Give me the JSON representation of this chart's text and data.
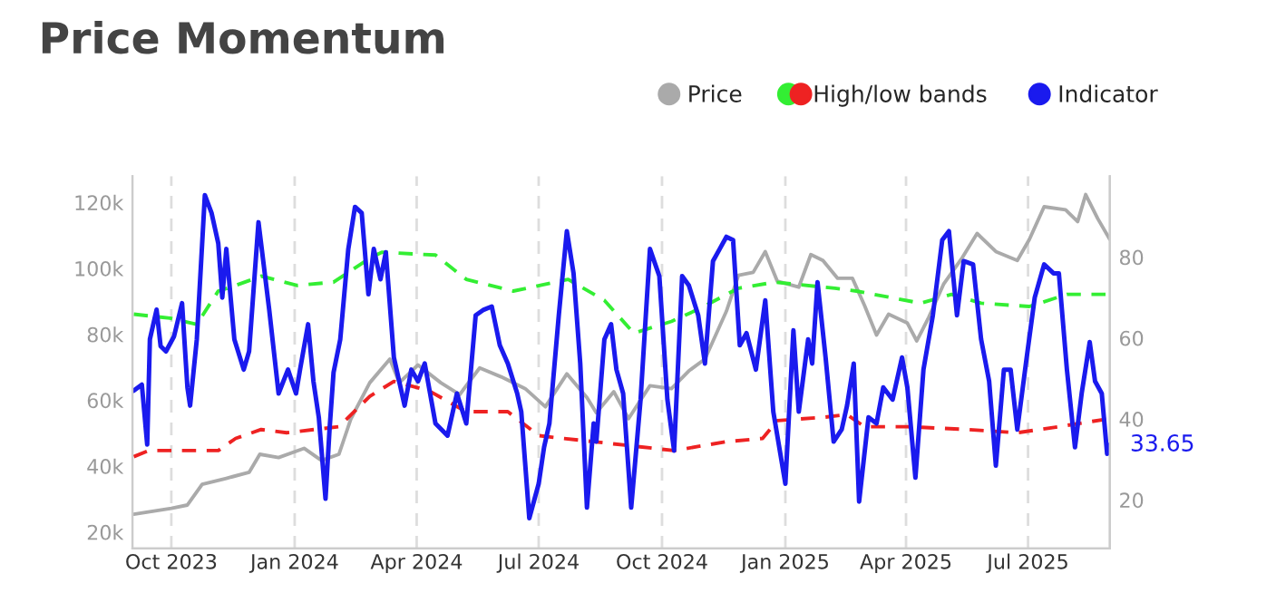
{
  "chart_data": {
    "type": "line",
    "title": "Price Momentum",
    "xlim": [
      "2023-09-02",
      "2025-08-31"
    ],
    "xticks": [
      {
        "value": "2023-10-01",
        "label": "Oct 2023"
      },
      {
        "value": "2024-01-01",
        "label": "Jan 2024"
      },
      {
        "value": "2024-04-01",
        "label": "Apr 2024"
      },
      {
        "value": "2024-07-01",
        "label": "Jul 2024"
      },
      {
        "value": "2024-10-01",
        "label": "Oct 2024"
      },
      {
        "value": "2025-01-01",
        "label": "Jan 2025"
      },
      {
        "value": "2025-04-01",
        "label": "Apr 2025"
      },
      {
        "value": "2025-07-01",
        "label": "Jul 2025"
      }
    ],
    "ylim": [
      15000,
      128000
    ],
    "yticks": [
      {
        "value": 20000,
        "label": "20k"
      },
      {
        "value": 40000,
        "label": "40k"
      },
      {
        "value": 60000,
        "label": "60k"
      },
      {
        "value": 80000,
        "label": "80k"
      },
      {
        "value": 100000,
        "label": "100k"
      },
      {
        "value": 120000,
        "label": "120k"
      }
    ],
    "y2lim": [
      8,
      100
    ],
    "y2ticks": [
      20,
      40,
      60,
      80
    ],
    "grid": "x",
    "legend": "top right",
    "marker": "none",
    "annotations": [
      "33.65"
    ],
    "series": [
      {
        "name": "Price",
        "color": "#aaaaaa",
        "axis": "y",
        "line_style": "solid",
        "x": [
          "2023-09-03",
          "2023-10-01",
          "2023-10-13",
          "2023-10-24",
          "2023-11-11",
          "2023-11-28",
          "2023-12-06",
          "2023-12-20",
          "2024-01-08",
          "2024-01-21",
          "2024-02-03",
          "2024-02-12",
          "2024-02-26",
          "2024-03-12",
          "2024-03-19",
          "2024-04-02",
          "2024-04-19",
          "2024-05-03",
          "2024-05-18",
          "2024-06-03",
          "2024-06-21",
          "2024-07-06",
          "2024-07-22",
          "2024-08-06",
          "2024-08-13",
          "2024-08-26",
          "2024-09-06",
          "2024-09-22",
          "2024-10-08",
          "2024-10-21",
          "2024-11-02",
          "2024-11-18",
          "2024-11-27",
          "2024-12-08",
          "2024-12-17",
          "2024-12-26",
          "2025-01-11",
          "2025-01-20",
          "2025-01-29",
          "2025-02-09",
          "2025-02-20",
          "2025-03-01",
          "2025-03-10",
          "2025-03-19",
          "2025-04-02",
          "2025-04-09",
          "2025-04-18",
          "2025-04-29",
          "2025-05-13",
          "2025-05-24",
          "2025-06-07",
          "2025-06-23",
          "2025-07-02",
          "2025-07-13",
          "2025-07-29",
          "2025-08-07",
          "2025-08-13",
          "2025-08-22",
          "2025-08-31"
        ],
        "values": [
          25400,
          27200,
          28200,
          34500,
          36300,
          38100,
          43600,
          42600,
          45400,
          41700,
          43600,
          54400,
          65300,
          72500,
          65300,
          70700,
          65300,
          61700,
          69800,
          67100,
          63500,
          58000,
          68000,
          60800,
          56200,
          62600,
          54400,
          64400,
          63500,
          68900,
          72500,
          87000,
          97900,
          98800,
          105100,
          96100,
          94300,
          104200,
          102400,
          97000,
          97000,
          88800,
          79800,
          86100,
          83400,
          78000,
          85200,
          95200,
          103300,
          110600,
          105100,
          102400,
          108800,
          118700,
          117800,
          114200,
          122400,
          115100,
          108800
        ]
      },
      {
        "name": "High/low bands",
        "color": "#33ee33",
        "axis": "y2",
        "line_style": "dashed",
        "x": [
          "2023-09-03",
          "2023-09-30",
          "2023-10-20",
          "2023-11-05",
          "2023-11-18",
          "2023-12-07",
          "2024-01-03",
          "2024-01-30",
          "2024-02-26",
          "2024-03-06",
          "2024-04-15",
          "2024-05-08",
          "2024-06-12",
          "2024-07-23",
          "2024-08-19",
          "2024-09-10",
          "2024-10-08",
          "2024-10-28",
          "2024-11-27",
          "2024-12-24",
          "2025-02-07",
          "2025-02-23",
          "2025-04-12",
          "2025-05-05",
          "2025-05-27",
          "2025-07-02",
          "2025-07-30",
          "2025-08-31"
        ],
        "values": [
          65.9,
          64.9,
          63.4,
          71.6,
          73,
          75.3,
          73,
          73.8,
          79.7,
          81.2,
          80.5,
          74.5,
          71.6,
          74.5,
          69.3,
          61.2,
          64.1,
          67.1,
          72.3,
          73.8,
          72.3,
          71.6,
          68.6,
          70.8,
          68.6,
          67.8,
          70.8,
          70.8
        ]
      },
      {
        "color": "#ee2222",
        "axis": "y2",
        "line_style": "dashed",
        "x": [
          "2023-09-03",
          "2023-09-14",
          "2023-11-05",
          "2023-11-18",
          "2023-12-07",
          "2023-12-26",
          "2024-02-03",
          "2024-02-26",
          "2024-03-15",
          "2024-04-10",
          "2024-05-08",
          "2024-06-08",
          "2024-07-01",
          "2024-07-19",
          "2024-08-11",
          "2024-10-10",
          "2024-11-18",
          "2024-12-15",
          "2024-12-26",
          "2025-01-29",
          "2025-02-16",
          "2025-03-01",
          "2025-04-02",
          "2025-05-17",
          "2025-06-23",
          "2025-07-24",
          "2025-08-31"
        ],
        "values": [
          30.7,
          32.2,
          32.2,
          35.2,
          37.4,
          36.6,
          38.1,
          45.6,
          49.3,
          47,
          41.8,
          41.8,
          35.9,
          35.2,
          34.4,
          32.2,
          34.4,
          35.2,
          39.6,
          40.4,
          41.1,
          38.1,
          38.1,
          37.4,
          36.6,
          38.1,
          40.1
        ]
      },
      {
        "name": "Indicator",
        "color": "#1a1aee",
        "axis": "y2",
        "line_style": "solid",
        "x": [
          "2023-09-03",
          "2023-09-09",
          "2023-09-13",
          "2023-09-15",
          "2023-09-20",
          "2023-09-23",
          "2023-09-27",
          "2023-10-03",
          "2023-10-09",
          "2023-10-13",
          "2023-10-15",
          "2023-10-20",
          "2023-10-26",
          "2023-10-31",
          "2023-11-05",
          "2023-11-08",
          "2023-11-11",
          "2023-11-17",
          "2023-11-24",
          "2023-11-28",
          "2023-12-05",
          "2023-12-13",
          "2023-12-20",
          "2023-12-27",
          "2024-01-02",
          "2024-01-05",
          "2024-01-11",
          "2024-01-15",
          "2024-01-19",
          "2024-01-24",
          "2024-01-27",
          "2024-01-30",
          "2024-02-04",
          "2024-02-10",
          "2024-02-15",
          "2024-02-20",
          "2024-02-25",
          "2024-02-29",
          "2024-03-05",
          "2024-03-09",
          "2024-03-15",
          "2024-03-23",
          "2024-03-28",
          "2024-04-02",
          "2024-04-07",
          "2024-04-15",
          "2024-04-24",
          "2024-05-01",
          "2024-05-08",
          "2024-05-15",
          "2024-05-21",
          "2024-05-27",
          "2024-06-02",
          "2024-06-08",
          "2024-06-15",
          "2024-06-18",
          "2024-06-24",
          "2024-07-01",
          "2024-07-05",
          "2024-07-09",
          "2024-07-16",
          "2024-07-22",
          "2024-07-27",
          "2024-08-01",
          "2024-08-06",
          "2024-08-11",
          "2024-08-13",
          "2024-08-19",
          "2024-08-24",
          "2024-08-28",
          "2024-09-02",
          "2024-09-08",
          "2024-09-15",
          "2024-09-22",
          "2024-09-29",
          "2024-10-05",
          "2024-10-10",
          "2024-10-16",
          "2024-10-21",
          "2024-10-28",
          "2024-11-02",
          "2024-11-08",
          "2024-11-13",
          "2024-11-18",
          "2024-11-23",
          "2024-11-28",
          "2024-12-03",
          "2024-12-10",
          "2024-12-17",
          "2024-12-23",
          "2025-01-01",
          "2025-01-07",
          "2025-01-11",
          "2025-01-18",
          "2025-01-21",
          "2025-01-25",
          "2025-01-31",
          "2025-02-06",
          "2025-02-12",
          "2025-02-16",
          "2025-02-21",
          "2025-02-25",
          "2025-03-04",
          "2025-03-10",
          "2025-03-15",
          "2025-03-22",
          "2025-03-29",
          "2025-04-02",
          "2025-04-08",
          "2025-04-14",
          "2025-04-21",
          "2025-04-28",
          "2025-05-03",
          "2025-05-09",
          "2025-05-14",
          "2025-05-21",
          "2025-05-27",
          "2025-06-02",
          "2025-06-07",
          "2025-06-13",
          "2025-06-18",
          "2025-06-23",
          "2025-06-30",
          "2025-07-06",
          "2025-07-13",
          "2025-07-20",
          "2025-07-24",
          "2025-07-30",
          "2025-08-05",
          "2025-08-10",
          "2025-08-16",
          "2025-08-20",
          "2025-08-25",
          "2025-08-29",
          "2025-08-31"
        ],
        "values": [
          47,
          48.5,
          33.7,
          59.7,
          67,
          58,
          56.7,
          60.4,
          68.6,
          47.8,
          43.3,
          59.7,
          95.3,
          90.9,
          83.4,
          70,
          82,
          59.7,
          52.2,
          56.7,
          88.6,
          67,
          46.3,
          52.2,
          46.3,
          52.2,
          63.4,
          49.3,
          40.4,
          20.3,
          37.4,
          51.5,
          59.7,
          82,
          92.4,
          90.9,
          70.8,
          82,
          74.5,
          81.2,
          55.2,
          43.3,
          52.2,
          49.3,
          53.7,
          38.9,
          35.9,
          46.3,
          38.9,
          65.6,
          67,
          67.8,
          58.2,
          53.7,
          46.3,
          41.8,
          15.5,
          24,
          33,
          38.9,
          65.6,
          86.4,
          76,
          53.7,
          18.1,
          38.9,
          34.4,
          59.7,
          63.4,
          52.2,
          46.3,
          18.1,
          44.8,
          82,
          75.3,
          44.8,
          32.2,
          75.3,
          73,
          65.6,
          53.7,
          79,
          82,
          85,
          84.2,
          58.2,
          61.2,
          52.2,
          69.3,
          41.8,
          24,
          61.9,
          41.8,
          59.7,
          53.7,
          73.8,
          55.2,
          34.4,
          37.4,
          43.3,
          53.7,
          19.6,
          40.4,
          38.9,
          47.8,
          44.8,
          55.2,
          47.8,
          25.5,
          52.2,
          65.6,
          84.2,
          86.4,
          65.6,
          79,
          78.2,
          59.7,
          49.3,
          28.5,
          52.2,
          52.2,
          37.4,
          55.2,
          70,
          78.2,
          76,
          76,
          52.2,
          33,
          46.3,
          59,
          49.3,
          46.3,
          31.4,
          33.6
        ]
      }
    ]
  }
}
